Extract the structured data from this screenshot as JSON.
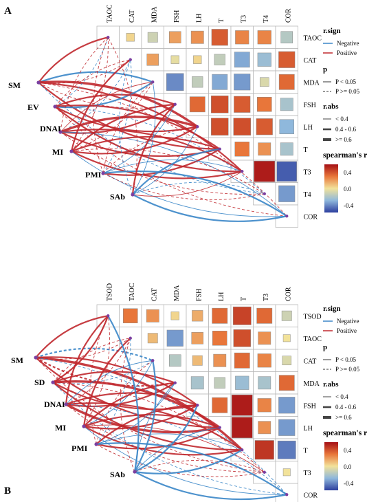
{
  "chart_data": [
    {
      "type": "heatmap",
      "panel_label": "A",
      "variables": [
        "TAOC",
        "CAT",
        "MDA",
        "FSH",
        "LH",
        "T",
        "T3",
        "T4",
        "COR"
      ],
      "matrix": [
        [
          null,
          0.05,
          -0.15,
          0.25,
          0.3,
          0.5,
          0.35,
          0.35,
          -0.25
        ],
        [
          null,
          null,
          0.25,
          -0.05,
          0.05,
          -0.2,
          -0.45,
          -0.35,
          0.5
        ],
        [
          null,
          null,
          null,
          -0.55,
          -0.2,
          -0.45,
          -0.5,
          -0.1,
          0.45
        ],
        [
          null,
          null,
          null,
          null,
          0.45,
          0.55,
          0.5,
          0.4,
          -0.3
        ],
        [
          null,
          null,
          null,
          null,
          null,
          0.55,
          0.55,
          0.5,
          -0.4
        ],
        [
          null,
          null,
          null,
          null,
          null,
          null,
          0.4,
          0.3,
          -0.3
        ],
        [
          null,
          null,
          null,
          null,
          null,
          null,
          null,
          0.75,
          -0.7
        ],
        [
          null,
          null,
          null,
          null,
          null,
          null,
          null,
          null,
          -0.5
        ],
        [
          null,
          null,
          null,
          null,
          null,
          null,
          null,
          null,
          null
        ]
      ],
      "link_nodes": [
        "SM",
        "EV",
        "DNAI",
        "MI",
        "PMI",
        "SAb"
      ]
    },
    {
      "type": "heatmap",
      "panel_label": "B",
      "variables": [
        "TSOD",
        "TAOC",
        "CAT",
        "MDA",
        "FSH",
        "LH",
        "T",
        "T3",
        "COR"
      ],
      "matrix": [
        [
          null,
          0.4,
          0.3,
          0.05,
          0.2,
          0.45,
          0.6,
          0.45,
          -0.15
        ],
        [
          null,
          null,
          0.15,
          -0.5,
          0.25,
          0.4,
          0.55,
          0.3,
          0.0
        ],
        [
          null,
          null,
          null,
          -0.25,
          0.15,
          0.3,
          0.45,
          0.35,
          -0.1
        ],
        [
          null,
          null,
          null,
          null,
          -0.3,
          -0.2,
          -0.35,
          -0.3,
          0.45
        ],
        [
          null,
          null,
          null,
          null,
          null,
          0.45,
          0.75,
          0.35,
          -0.5
        ],
        [
          null,
          null,
          null,
          null,
          null,
          null,
          0.75,
          0.3,
          -0.5
        ],
        [
          null,
          null,
          null,
          null,
          null,
          null,
          null,
          0.65,
          -0.6
        ],
        [
          null,
          null,
          null,
          null,
          null,
          null,
          null,
          null,
          0.0
        ],
        [
          null,
          null,
          null,
          null,
          null,
          null,
          null,
          null,
          null
        ]
      ],
      "link_nodes": [
        "SM",
        "SD",
        "DNAI",
        "MI",
        "PMI",
        "SAb"
      ]
    }
  ],
  "legend": {
    "sign_title": "r.sign",
    "sign_negative": "Negative",
    "sign_positive": "Positive",
    "p_title": "p",
    "p_low": "P < 0.05",
    "p_high": "P >= 0.05",
    "abs_title": "r.abs",
    "abs_1": "< 0.4",
    "abs_2": "0.4 - 0.6",
    "abs_3": ">= 0.6",
    "scale_title": "spearman's r",
    "scale_ticks": [
      "0.4",
      "0.0",
      "-0.4"
    ]
  },
  "colors": {
    "positive_line": "#c0282d",
    "negative_line": "#3a86c8",
    "neutral_line": "#7b3fa0",
    "scale_high": "#a50f15",
    "scale_mid": "#f2e29a",
    "scale_low": "#2c3e9e"
  }
}
